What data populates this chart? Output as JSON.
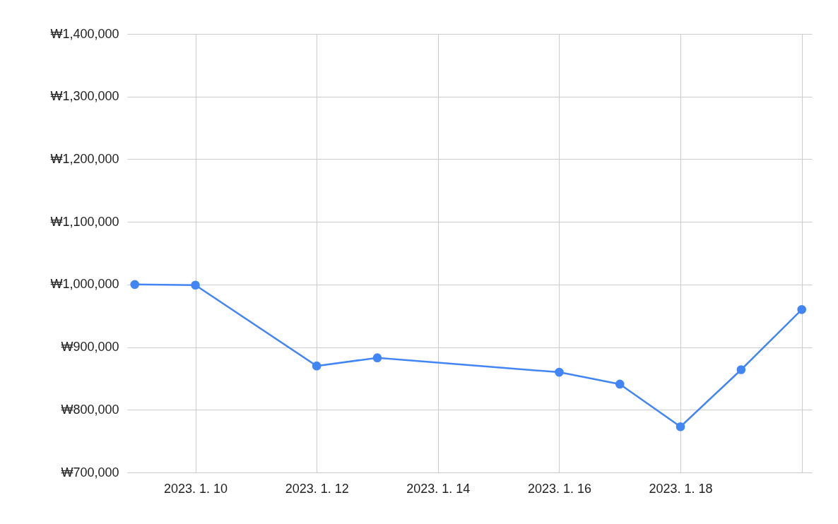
{
  "chart_data": {
    "type": "line",
    "x": [
      "2023-01-09",
      "2023-01-10",
      "2023-01-12",
      "2023-01-13",
      "2023-01-16",
      "2023-01-17",
      "2023-01-18",
      "2023-01-19",
      "2023-01-20"
    ],
    "series": [
      {
        "color": "#4285f4",
        "values": [
          1000000,
          999000,
          870000,
          883000,
          860000,
          841000,
          773000,
          864000,
          960000
        ]
      }
    ],
    "xlim": [
      "2023-01-08T21:00",
      "2023-01-20T04:00"
    ],
    "xticks": [
      {
        "value": "2023-01-10",
        "label": "2023. 1. 10"
      },
      {
        "value": "2023-01-12",
        "label": "2023. 1. 12"
      },
      {
        "value": "2023-01-14",
        "label": "2023. 1. 14"
      },
      {
        "value": "2023-01-16",
        "label": "2023. 1. 16"
      },
      {
        "value": "2023-01-18",
        "label": "2023. 1. 18"
      },
      {
        "value": "2023-01-20",
        "label": null
      }
    ],
    "ylim": [
      700000,
      1400000
    ],
    "yticks": [
      {
        "value": 700000,
        "label": "₩700,000"
      },
      {
        "value": 800000,
        "label": "₩800,000"
      },
      {
        "value": 900000,
        "label": "₩900,000"
      },
      {
        "value": 1000000,
        "label": "₩1,000,000"
      },
      {
        "value": 1100000,
        "label": "₩1,100,000"
      },
      {
        "value": 1200000,
        "label": "₩1,200,000"
      },
      {
        "value": 1300000,
        "label": "₩1,300,000"
      },
      {
        "value": 1400000,
        "label": "₩1,400,000"
      }
    ],
    "grid": true,
    "marker": "circle",
    "line_style": "solid"
  }
}
